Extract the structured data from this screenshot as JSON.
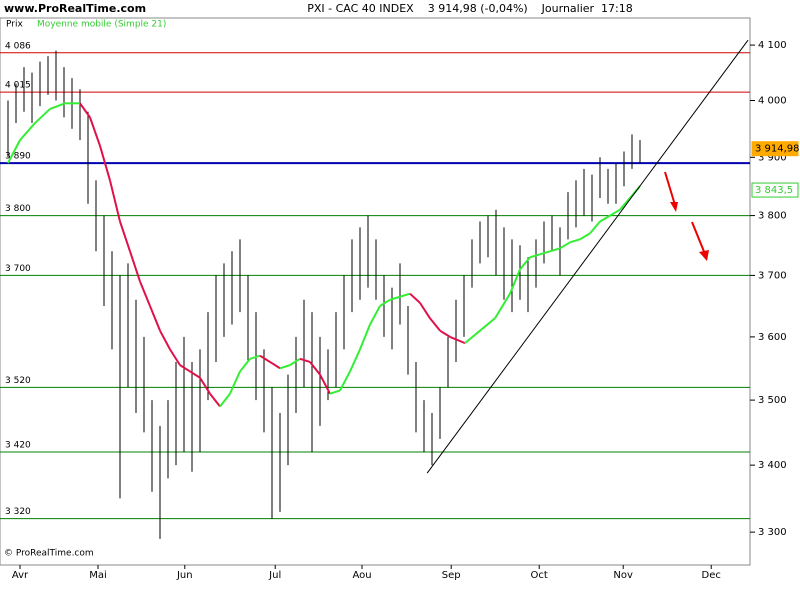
{
  "header": {
    "site": "www.ProRealTime.com",
    "title": "PXI - CAC 40 INDEX    3 914,98 (-0,04%)    Journalier  17:18",
    "footer": "© ProRealTime.com"
  },
  "chart_data": {
    "type": "ohlc",
    "legend": [
      {
        "name": "Prix",
        "color": "#000000"
      },
      {
        "name": "Moyenne mobile (Simple 21)",
        "color": "#33cc33"
      }
    ],
    "log_y": true,
    "ylim": [
      3252,
      4124
    ],
    "yticks": [
      {
        "value": 4100,
        "label": "4 100"
      },
      {
        "value": 4000,
        "label": "4 000"
      },
      {
        "value": 3900,
        "label": "3 900"
      },
      {
        "value": 3800,
        "label": "3 800"
      },
      {
        "value": 3700,
        "label": "3 700"
      },
      {
        "value": 3600,
        "label": "3 600"
      },
      {
        "value": 3500,
        "label": "3 500"
      },
      {
        "value": 3400,
        "label": "3 400"
      },
      {
        "value": 3300,
        "label": "3 300"
      }
    ],
    "xlim": [
      -1,
      92.75
    ],
    "xticks": [
      {
        "value": 1.5,
        "label": "Avr"
      },
      {
        "value": 11.25,
        "label": "Mai"
      },
      {
        "value": 22.1,
        "label": "Jun"
      },
      {
        "value": 33.4,
        "label": "Jul"
      },
      {
        "value": 44.25,
        "label": "Aou"
      },
      {
        "value": 55.4,
        "label": "Sep"
      },
      {
        "value": 66.4,
        "label": "Oct"
      },
      {
        "value": 76.9,
        "label": "Nov"
      },
      {
        "value": 87.9,
        "label": "Dec"
      }
    ],
    "levels": [
      {
        "value": 4086,
        "label": "4 086",
        "color": "#d00000"
      },
      {
        "value": 4015,
        "label": "4 015",
        "color": "#d00000"
      },
      {
        "value": 3890,
        "label": "3 890",
        "color": "#0000b0"
      },
      {
        "value": 3800,
        "label": "3 800",
        "color": "#008000"
      },
      {
        "value": 3700,
        "label": "3 700",
        "color": "#008000"
      },
      {
        "value": 3520,
        "label": "3 520",
        "color": "#008000"
      },
      {
        "value": 3420,
        "label": "3 420",
        "color": "#008000"
      },
      {
        "value": 3320,
        "label": "3 320",
        "color": "#008000"
      }
    ],
    "high": [
      4000,
      4030,
      4060,
      4050,
      4070,
      4080,
      4090,
      4060,
      4040,
      4020,
      3980,
      3860,
      3800,
      3740,
      3700,
      3720,
      3660,
      3600,
      3500,
      3460,
      3500,
      3560,
      3600,
      3560,
      3580,
      3640,
      3700,
      3720,
      3740,
      3760,
      3700,
      3640,
      3580,
      3520,
      3480,
      3540,
      3600,
      3660,
      3640,
      3600,
      3580,
      3640,
      3700,
      3760,
      3780,
      3800,
      3760,
      3700,
      3680,
      3720,
      3650,
      3560,
      3500,
      3480,
      3520,
      3600,
      3660,
      3700,
      3760,
      3790,
      3800,
      3810,
      3780,
      3760,
      3750,
      3730,
      3760,
      3790,
      3800,
      3780,
      3840,
      3860,
      3880,
      3870,
      3900,
      3880,
      3890,
      3910,
      3940,
      3930
    ],
    "low": [
      3900,
      3960,
      3980,
      3960,
      3990,
      4010,
      4000,
      3970,
      3950,
      3930,
      3820,
      3740,
      3650,
      3580,
      3350,
      3520,
      3480,
      3450,
      3360,
      3290,
      3380,
      3400,
      3420,
      3390,
      3420,
      3500,
      3560,
      3600,
      3620,
      3640,
      3560,
      3500,
      3450,
      3320,
      3330,
      3400,
      3480,
      3520,
      3420,
      3460,
      3500,
      3520,
      3580,
      3640,
      3660,
      3680,
      3660,
      3600,
      3580,
      3620,
      3540,
      3450,
      3420,
      3400,
      3440,
      3520,
      3560,
      3600,
      3680,
      3720,
      3730,
      3700,
      3660,
      3640,
      3660,
      3640,
      3680,
      3720,
      3740,
      3700,
      3760,
      3780,
      3800,
      3790,
      3830,
      3820,
      3820,
      3850,
      3880,
      3890
    ],
    "ma_x": [
      0,
      1.5,
      3.375,
      5.25,
      7.125,
      9,
      10.25,
      11.5,
      12.75,
      14,
      15.25,
      16.5,
      17.75,
      19,
      20.25,
      21.5,
      22.75,
      24,
      25.25,
      26.5,
      27.75,
      29,
      30.25,
      31.5,
      32.75,
      34,
      35.25,
      36.5,
      37.75,
      39,
      40.25,
      41.5,
      42.75,
      44,
      45.25,
      46.5,
      47.75,
      49,
      50.25,
      51.5,
      52.75,
      54,
      55.25,
      57.125,
      59,
      60.875,
      62.75,
      64,
      65.25,
      66.5,
      67.75,
      69,
      70.25,
      71.5,
      72.75,
      74,
      75.25,
      76.5,
      77.75,
      79
    ],
    "ma": [
      3890,
      3930,
      3960,
      3985,
      3995,
      3995,
      3970,
      3920,
      3860,
      3790,
      3740,
      3690,
      3650,
      3610,
      3580,
      3555,
      3545,
      3535,
      3510,
      3490,
      3510,
      3545,
      3565,
      3570,
      3560,
      3550,
      3555,
      3565,
      3560,
      3540,
      3510,
      3515,
      3545,
      3580,
      3620,
      3650,
      3660,
      3665,
      3670,
      3655,
      3630,
      3610,
      3600,
      3590,
      3610,
      3630,
      3670,
      3710,
      3730,
      3735,
      3740,
      3745,
      3755,
      3760,
      3770,
      3790,
      3800,
      3810,
      3830,
      3850
    ],
    "ma_colors": {
      "up": "#33ee33",
      "down": "#e0104a"
    },
    "trendline": {
      "x": [
        52.4,
        92.5
      ],
      "values": [
        3388,
        4109
      ]
    },
    "last_price": {
      "value": 3914.98,
      "label": "3 914,98",
      "color": "#ffaa00"
    },
    "last_ma": {
      "value": 3843.5,
      "label": "3 843,5",
      "color": "#33cc33"
    }
  }
}
